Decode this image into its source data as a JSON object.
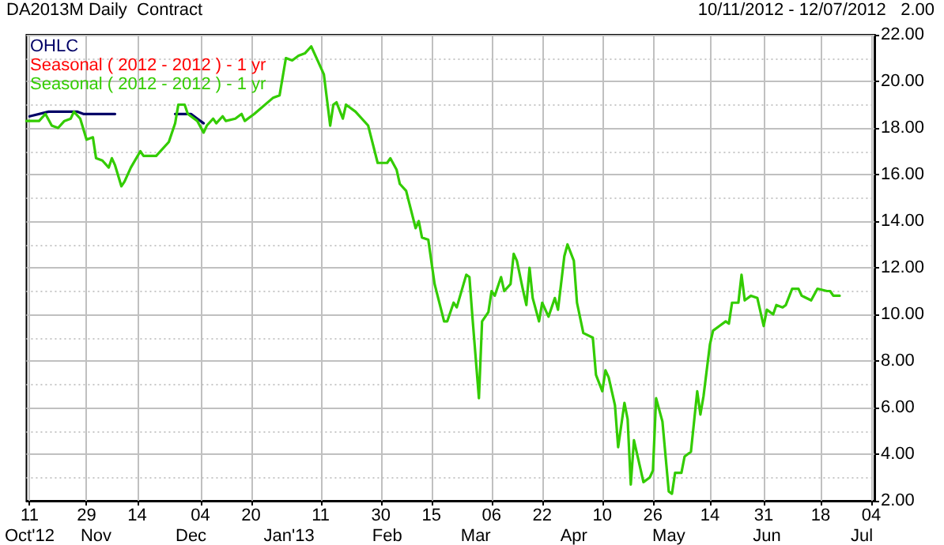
{
  "chart_data": {
    "type": "line",
    "title": "DA2013M Daily  Contract",
    "subtitle": "10/11/2012 - 12/07/2012   2.00",
    "xlim": [
      "2012-10-10",
      "2013-07-05"
    ],
    "xticks": [
      {
        "value": "2012-10-11",
        "label": "11"
      },
      {
        "value": "2012-10-29",
        "label": "29"
      },
      {
        "value": "2012-11-14",
        "label": "14"
      },
      {
        "value": "2012-12-04",
        "label": "04"
      },
      {
        "value": "2012-12-20",
        "label": "20"
      },
      {
        "value": "2013-01-11",
        "label": "11"
      },
      {
        "value": "2013-01-30",
        "label": "30"
      },
      {
        "value": "2013-02-15",
        "label": "15"
      },
      {
        "value": "2013-03-06",
        "label": "06"
      },
      {
        "value": "2013-03-22",
        "label": "22"
      },
      {
        "value": "2013-04-10",
        "label": "10"
      },
      {
        "value": "2013-04-26",
        "label": "26"
      },
      {
        "value": "2013-05-14",
        "label": "14"
      },
      {
        "value": "2013-05-31",
        "label": "31"
      },
      {
        "value": "2013-06-18",
        "label": "18"
      },
      {
        "value": "2013-07-04",
        "label": "04"
      }
    ],
    "x2lim": [
      "2012-10-10",
      "2013-07-05"
    ],
    "x2ticks": [
      {
        "value": "2012-10-11",
        "label": "Oct'12"
      },
      {
        "value": "2012-11-01",
        "label": "Nov"
      },
      {
        "value": "2012-12-01",
        "label": "Dec"
      },
      {
        "value": "2013-01-01",
        "label": "Jan'13"
      },
      {
        "value": "2013-02-01",
        "label": "Feb"
      },
      {
        "value": "2013-03-01",
        "label": "Mar"
      },
      {
        "value": "2013-04-01",
        "label": "Apr"
      },
      {
        "value": "2013-05-01",
        "label": "May"
      },
      {
        "value": "2013-06-01",
        "label": "Jun"
      },
      {
        "value": "2013-07-01",
        "label": "Jul"
      }
    ],
    "ylim": [
      2,
      22
    ],
    "yticks": [
      {
        "value": 2,
        "label": "2.00"
      },
      {
        "value": 4,
        "label": "4.00"
      },
      {
        "value": 6,
        "label": "6.00"
      },
      {
        "value": 8,
        "label": "8.00"
      },
      {
        "value": 10,
        "label": "10.00"
      },
      {
        "value": 12,
        "label": "12.00"
      },
      {
        "value": 14,
        "label": "14.00"
      },
      {
        "value": 16,
        "label": "16.00"
      },
      {
        "value": 18,
        "label": "18.00"
      },
      {
        "value": 20,
        "label": "20.00"
      },
      {
        "value": 22,
        "label": "22.00"
      }
    ],
    "grid": true,
    "legend": "top left",
    "marker": "none",
    "line_style": "solid",
    "series": [
      {
        "name": "OHLC",
        "color": "#000066",
        "x": [
          "2012-10-11",
          "2012-10-17",
          "2012-10-26",
          "2012-10-28",
          "2012-11-03",
          "2012-11-07",
          "2012-11-15",
          "2012-11-26",
          "2012-12-01",
          "2012-12-03",
          "2012-12-05"
        ],
        "values": [
          18.5,
          18.7,
          18.7,
          18.6,
          18.6,
          18.6,
          null,
          18.6,
          18.6,
          18.4,
          18.2
        ]
      },
      {
        "name": "Seasonal ( 2012 - 2012 ) - 1 yr",
        "color": "#ff0000"
      },
      {
        "name": "Seasonal ( 2012 - 2012 ) - 1 yr",
        "color": "#33cc00",
        "x": [
          "2012-10-10",
          "2012-10-14",
          "2012-10-16",
          "2012-10-18",
          "2012-10-20",
          "2012-10-22",
          "2012-10-24",
          "2012-10-25",
          "2012-10-27",
          "2012-10-29",
          "2012-10-31",
          "2012-11-01",
          "2012-11-03",
          "2012-11-05",
          "2012-11-06",
          "2012-11-07",
          "2012-11-09",
          "2012-11-10",
          "2012-11-12",
          "2012-11-15",
          "2012-11-16",
          "2012-11-20",
          "2012-11-24",
          "2012-11-26",
          "2012-11-27",
          "2012-11-29",
          "2012-11-30",
          "2012-12-03",
          "2012-12-05",
          "2012-12-06",
          "2012-12-08",
          "2012-12-09",
          "2012-12-11",
          "2012-12-12",
          "2012-12-15",
          "2012-12-17",
          "2012-12-18",
          "2012-12-21",
          "2012-12-27",
          "2012-12-29",
          "2012-12-31",
          "2013-01-02",
          "2013-01-04",
          "2013-01-06",
          "2013-01-08",
          "2013-01-10",
          "2013-01-12",
          "2013-01-14",
          "2013-01-15",
          "2013-01-16",
          "2013-01-18",
          "2013-01-19",
          "2013-01-22",
          "2013-01-26",
          "2013-01-29",
          "2013-02-01",
          "2013-02-02",
          "2013-02-04",
          "2013-02-05",
          "2013-02-07",
          "2013-02-10",
          "2013-02-11",
          "2013-02-12",
          "2013-02-14",
          "2013-02-16",
          "2013-02-19",
          "2013-02-20",
          "2013-02-22",
          "2013-02-23",
          "2013-02-26",
          "2013-02-27",
          "2013-02-28",
          "2013-03-02",
          "2013-03-03",
          "2013-03-05",
          "2013-03-06",
          "2013-03-07",
          "2013-03-09",
          "2013-03-10",
          "2013-03-12",
          "2013-03-13",
          "2013-03-14",
          "2013-03-16",
          "2013-03-17",
          "2013-03-18",
          "2013-03-19",
          "2013-03-21",
          "2013-03-22",
          "2013-03-24",
          "2013-03-26",
          "2013-03-27",
          "2013-03-29",
          "2013-03-30",
          "2013-04-01",
          "2013-04-02",
          "2013-04-04",
          "2013-04-07",
          "2013-04-08",
          "2013-04-10",
          "2013-04-11",
          "2013-04-12",
          "2013-04-14",
          "2013-04-15",
          "2013-04-17",
          "2013-04-18",
          "2013-04-19",
          "2013-04-20",
          "2013-04-22",
          "2013-04-23",
          "2013-04-25",
          "2013-04-26",
          "2013-04-27",
          "2013-04-29",
          "2013-05-01",
          "2013-05-02",
          "2013-05-03",
          "2013-05-05",
          "2013-05-06",
          "2013-05-08",
          "2013-05-10",
          "2013-05-11",
          "2013-05-12",
          "2013-05-14",
          "2013-05-15",
          "2013-05-17",
          "2013-05-19",
          "2013-05-20",
          "2013-05-21",
          "2013-05-23",
          "2013-05-24",
          "2013-05-25",
          "2013-05-27",
          "2013-05-29",
          "2013-05-31",
          "2013-06-01",
          "2013-06-03",
          "2013-06-04",
          "2013-06-06",
          "2013-06-07",
          "2013-06-09",
          "2013-06-11",
          "2013-06-12",
          "2013-06-15",
          "2013-06-17",
          "2013-06-20",
          "2013-06-21",
          "2013-06-22",
          "2013-06-24"
        ],
        "values": [
          18.3,
          18.3,
          18.6,
          18.1,
          18.0,
          18.3,
          18.4,
          18.7,
          18.4,
          17.5,
          17.6,
          16.7,
          16.6,
          16.3,
          16.7,
          16.4,
          15.5,
          15.7,
          16.3,
          17.0,
          16.8,
          16.8,
          17.4,
          18.2,
          19.0,
          19.0,
          18.6,
          18.3,
          17.8,
          18.1,
          18.4,
          18.2,
          18.5,
          18.3,
          18.4,
          18.6,
          18.3,
          18.6,
          19.3,
          19.4,
          21.0,
          20.9,
          21.1,
          21.2,
          21.5,
          20.9,
          20.3,
          18.1,
          19.0,
          19.1,
          18.4,
          19.0,
          18.7,
          18.1,
          16.5,
          16.5,
          16.7,
          16.2,
          15.6,
          15.3,
          13.7,
          14.0,
          13.3,
          13.2,
          11.3,
          9.7,
          9.7,
          10.5,
          10.3,
          11.7,
          11.6,
          9.8,
          6.4,
          9.7,
          10.1,
          11.0,
          10.8,
          11.6,
          11.0,
          11.3,
          12.6,
          12.3,
          11.0,
          10.4,
          12.0,
          10.7,
          9.7,
          10.5,
          9.9,
          10.7,
          10.2,
          12.5,
          13.0,
          12.3,
          10.5,
          9.2,
          9.0,
          7.4,
          6.7,
          7.6,
          7.3,
          6.1,
          4.3,
          6.2,
          5.5,
          2.7,
          4.6,
          3.4,
          2.8,
          3.0,
          3.3,
          6.4,
          5.4,
          2.4,
          2.3,
          3.2,
          3.2,
          3.9,
          4.1,
          6.7,
          5.7,
          6.5,
          8.7,
          9.3,
          9.5,
          9.7,
          9.6,
          10.5,
          10.5,
          11.7,
          10.6,
          10.8,
          10.7,
          9.5,
          10.2,
          10.0,
          10.4,
          10.3,
          10.4,
          11.1,
          11.1,
          10.8,
          10.6,
          11.1,
          11.0,
          11.0,
          10.8,
          10.8
        ]
      }
    ]
  }
}
